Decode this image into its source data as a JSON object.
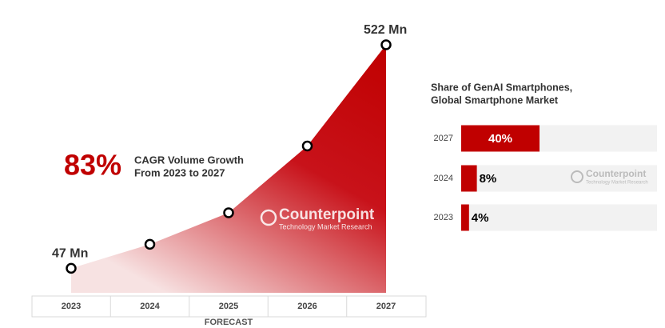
{
  "chart_data": [
    {
      "type": "area",
      "categories": [
        "2023",
        "2024",
        "2025",
        "2026",
        "2027"
      ],
      "values": [
        47,
        98,
        165,
        307,
        522
      ],
      "value_labels": [
        "47 Mn",
        null,
        null,
        null,
        "522 Mn"
      ],
      "color": "#c00000",
      "xlabel": "FORECAST",
      "annotation": {
        "value_text": "83%",
        "text": [
          "CAGR Volume Growth",
          "From 2023 to 2027"
        ]
      },
      "watermark": {
        "name": "Counterpoint",
        "tagline": "Technology Market Research"
      }
    },
    {
      "type": "hbar",
      "title": [
        "Share of GenAI Smartphones,",
        "Global Smartphone Market"
      ],
      "categories": [
        "2027",
        "2024",
        "2023"
      ],
      "values": [
        40,
        8,
        4
      ],
      "value_labels": [
        "40%",
        "8%",
        "4%"
      ],
      "color": "#c00000",
      "track_color": "#f2f2f2",
      "xlim": [
        0,
        100
      ],
      "watermark": {
        "name": "Counterpoint",
        "tagline": "Technology Market Research"
      }
    }
  ]
}
